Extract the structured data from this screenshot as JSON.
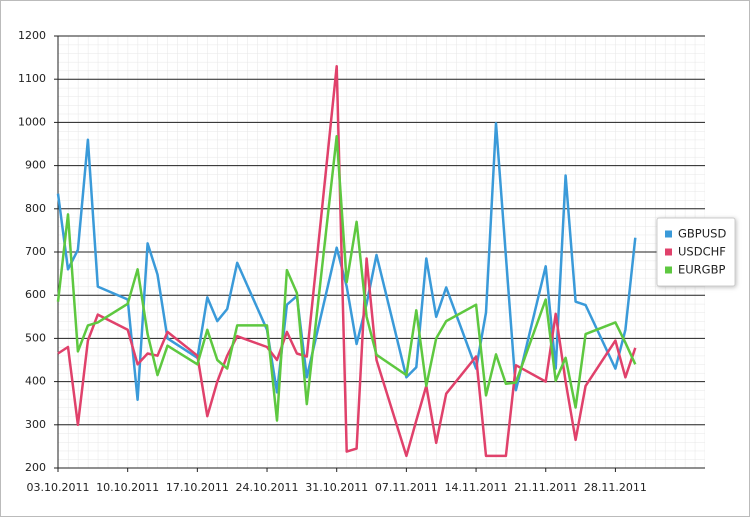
{
  "chart_data": {
    "type": "line",
    "x": [
      "03.10.2011",
      "04.10.2011",
      "05.10.2011",
      "06.10.2011",
      "07.10.2011",
      "10.10.2011",
      "11.10.2011",
      "12.10.2011",
      "13.10.2011",
      "14.10.2011",
      "17.10.2011",
      "18.10.2011",
      "19.10.2011",
      "20.10.2011",
      "21.10.2011",
      "24.10.2011",
      "25.10.2011",
      "26.10.2011",
      "27.10.2011",
      "28.10.2011",
      "31.10.2011",
      "01.11.2011",
      "02.11.2011",
      "03.11.2011",
      "04.11.2011",
      "07.11.2011",
      "08.11.2011",
      "09.11.2011",
      "10.11.2011",
      "11.11.2011",
      "14.11.2011",
      "15.11.2011",
      "16.11.2011",
      "17.11.2011",
      "18.11.2011",
      "21.11.2011",
      "22.11.2011",
      "23.11.2011",
      "24.11.2011",
      "25.11.2011",
      "28.11.2011",
      "29.11.2011",
      "30.11.2011"
    ],
    "series": [
      {
        "name": "GBPUSD",
        "color": "#3a9ad9",
        "values": [
          835,
          660,
          705,
          960,
          620,
          590,
          358,
          720,
          648,
          500,
          455,
          595,
          540,
          568,
          675,
          520,
          375,
          578,
          598,
          410,
          710,
          620,
          487,
          580,
          693,
          410,
          433,
          685,
          550,
          618,
          430,
          560,
          998,
          690,
          380,
          667,
          430,
          877,
          585,
          577,
          430,
          520,
          733
        ]
      },
      {
        "name": "USDCHF",
        "color": "#e0416b",
        "values": [
          465,
          480,
          300,
          495,
          555,
          520,
          440,
          465,
          460,
          515,
          460,
          320,
          400,
          460,
          505,
          480,
          450,
          515,
          465,
          458,
          1130,
          238,
          245,
          685,
          450,
          228,
          310,
          390,
          258,
          372,
          458,
          228,
          228,
          228,
          438,
          400,
          557,
          400,
          265,
          390,
          495,
          410,
          478
        ]
      },
      {
        "name": "EURGBP",
        "color": "#5ec840",
        "values": [
          585,
          787,
          470,
          530,
          537,
          580,
          660,
          510,
          415,
          483,
          440,
          520,
          450,
          430,
          530,
          530,
          310,
          658,
          605,
          348,
          968,
          630,
          770,
          550,
          462,
          415,
          565,
          390,
          500,
          540,
          578,
          368,
          463,
          395,
          398,
          590,
          402,
          455,
          340,
          510,
          537,
          490,
          440
        ]
      }
    ],
    "xlim": [
      "03.10.2011",
      "07.12.2011"
    ],
    "xticks": [
      "03.10.2011",
      "10.10.2011",
      "17.10.2011",
      "24.10.2011",
      "31.10.2011",
      "07.11.2011",
      "14.11.2011",
      "21.11.2011",
      "28.11.2011"
    ],
    "ylim": [
      200,
      1200
    ],
    "yticks": [
      200,
      300,
      400,
      500,
      600,
      700,
      800,
      900,
      1000,
      1100,
      1200
    ],
    "grid": true,
    "legend": "right"
  }
}
